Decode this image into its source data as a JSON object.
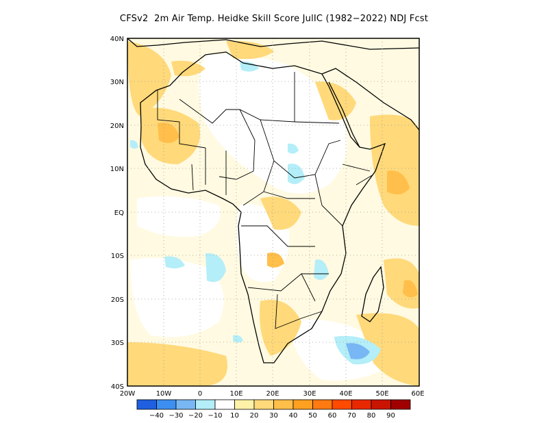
{
  "title": "CFSv2  2m Air Temp. Heidke Skill Score JulIC (1982−2022) NDJ Fcst",
  "map": {
    "lon_range": [
      -20,
      60
    ],
    "lat_range": [
      -40,
      40
    ],
    "lat_ticks": [
      "40N",
      "30N",
      "20N",
      "10N",
      "EQ",
      "10S",
      "20S",
      "30S",
      "40S"
    ],
    "lon_ticks": [
      "20W",
      "10W",
      "0",
      "10E",
      "20E",
      "30E",
      "40E",
      "50E",
      "60E"
    ],
    "gridlines": "dotted"
  },
  "colorbar": {
    "colors": [
      "#1f5fe0",
      "#3c8ff0",
      "#78b7f4",
      "#b4eef8",
      "#ffffff",
      "#fff2a8",
      "#ffd97a",
      "#ffbf4a",
      "#ffa020",
      "#ff7a10",
      "#ff4a00",
      "#e82800",
      "#c81400",
      "#a00000"
    ],
    "labels": [
      "-40",
      "-30",
      "-20",
      "-10",
      "10",
      "20",
      "30",
      "40",
      "50",
      "60",
      "70",
      "80",
      "90"
    ]
  }
}
